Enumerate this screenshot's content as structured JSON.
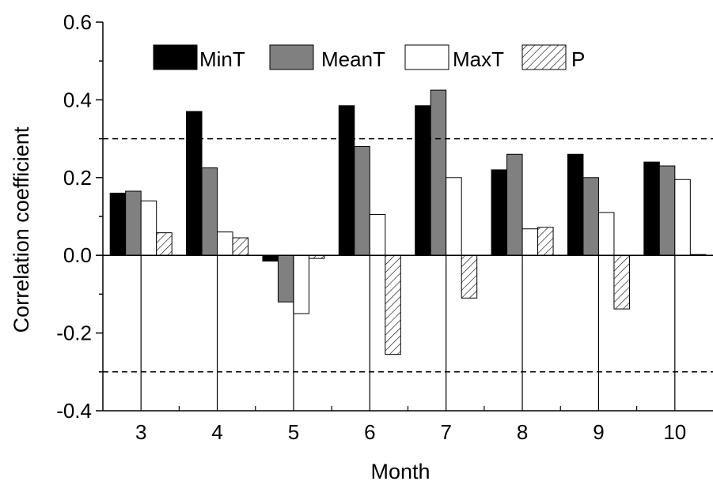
{
  "chart_data": {
    "type": "bar",
    "xlabel": "Month",
    "ylabel": "Correlation coefficient",
    "categories": [
      "3",
      "4",
      "5",
      "6",
      "7",
      "8",
      "9",
      "10"
    ],
    "series": [
      {
        "name": "MinT",
        "fill": "solid-black",
        "values": [
          0.16,
          0.37,
          -0.015,
          0.385,
          0.385,
          0.22,
          0.26,
          0.24
        ]
      },
      {
        "name": "MeanT",
        "fill": "solid-gray",
        "values": [
          0.165,
          0.225,
          -0.12,
          0.28,
          0.425,
          0.26,
          0.2,
          0.23
        ]
      },
      {
        "name": "MaxT",
        "fill": "white",
        "values": [
          0.14,
          0.06,
          -0.15,
          0.105,
          0.2,
          0.068,
          0.11,
          0.195
        ]
      },
      {
        "name": "P",
        "fill": "hatched",
        "values": [
          0.058,
          0.045,
          -0.008,
          -0.255,
          -0.11,
          0.072,
          -0.138,
          0.002
        ]
      }
    ],
    "ylim": [
      -0.4,
      0.6
    ],
    "yticks": [
      "-0.4",
      "-0.2",
      "0.0",
      "0.2",
      "0.4",
      "0.6"
    ],
    "reference_lines": [
      0.3,
      -0.3
    ],
    "grid": false,
    "legend_position": "top"
  },
  "colors": {
    "MinT": "#000000",
    "MeanT": "#808080",
    "MaxT": "#ffffff",
    "P": "#ffffff",
    "axis": "#000000",
    "reference_line": "#000000"
  }
}
